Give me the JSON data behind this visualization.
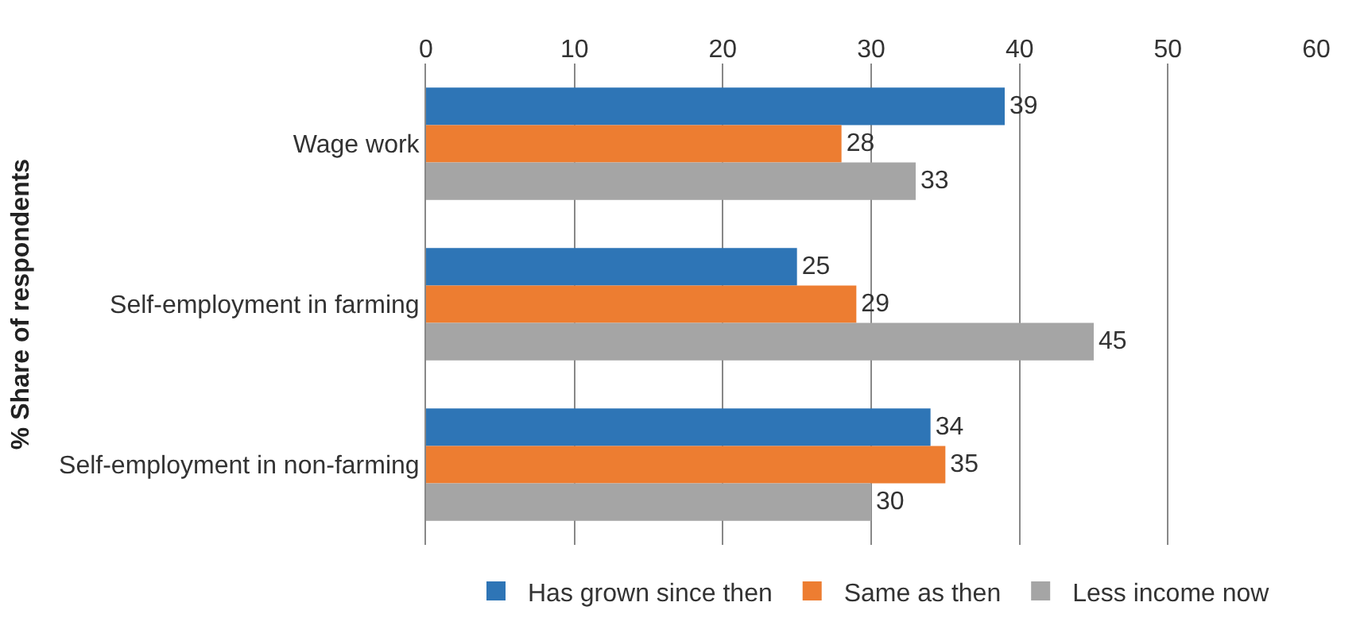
{
  "chart_data": {
    "type": "bar",
    "orientation": "horizontal",
    "ylabel": "% Share of respondents",
    "categories": [
      "Wage work",
      "Self-employment in farming",
      "Self-employment in non-farming"
    ],
    "series": [
      {
        "name": "Has grown since then",
        "color": "#2e75b6",
        "values": [
          39,
          25,
          34
        ]
      },
      {
        "name": "Same as then",
        "color": "#ed7d31",
        "values": [
          28,
          29,
          35
        ]
      },
      {
        "name": "Less income now",
        "color": "#a5a5a5",
        "values": [
          33,
          45,
          30
        ]
      }
    ],
    "xlim": [
      0,
      60
    ],
    "xticks": [
      0,
      10,
      20,
      30,
      40,
      50,
      60
    ],
    "grid": "x",
    "legend": "bottom",
    "data_labels": true
  }
}
